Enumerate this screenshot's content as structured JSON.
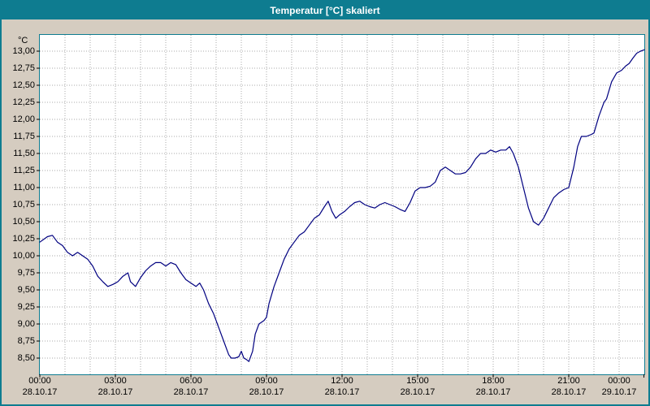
{
  "window": {
    "title": "Temperatur [°C] skaliert"
  },
  "colors": {
    "titlebar_bg": "#0e7c90",
    "frame": "#0e7c90",
    "window_bg": "#d5ccc0",
    "plot_bg": "#ffffff",
    "line": "#000080",
    "grid": "#a8a8a8",
    "tick": "#000000",
    "title_text": "#ffffff"
  },
  "chart_data": {
    "type": "line",
    "title": "Temperatur [°C] skaliert",
    "ylabel": "°C",
    "xlabel": "",
    "ylim": [
      8.5,
      13.0
    ],
    "y_tick_step": 0.25,
    "xlim_hours": [
      0,
      24
    ],
    "grid": "dotted; vertical every hour, horizontal every 0.25 °C",
    "legend": "none",
    "y_ticks": [
      {
        "value": 13.0,
        "label": "13,00"
      },
      {
        "value": 12.75,
        "label": "12,75"
      },
      {
        "value": 12.5,
        "label": "12,50"
      },
      {
        "value": 12.25,
        "label": "12,25"
      },
      {
        "value": 12.0,
        "label": "12,00"
      },
      {
        "value": 11.75,
        "label": "11,75"
      },
      {
        "value": 11.5,
        "label": "11,50"
      },
      {
        "value": 11.25,
        "label": "11,25"
      },
      {
        "value": 11.0,
        "label": "11,00"
      },
      {
        "value": 10.75,
        "label": "10,75"
      },
      {
        "value": 10.5,
        "label": "10,50"
      },
      {
        "value": 10.25,
        "label": "10,25"
      },
      {
        "value": 10.0,
        "label": "10,00"
      },
      {
        "value": 9.75,
        "label": "9,75"
      },
      {
        "value": 9.5,
        "label": "9,50"
      },
      {
        "value": 9.25,
        "label": "9,25"
      },
      {
        "value": 9.0,
        "label": "9,00"
      },
      {
        "value": 8.75,
        "label": "8,75"
      },
      {
        "value": 8.5,
        "label": "8,50"
      }
    ],
    "x_ticks": [
      {
        "hour": 0,
        "time": "00:00",
        "date": "28.10.17"
      },
      {
        "hour": 3,
        "time": "03:00",
        "date": "28.10.17"
      },
      {
        "hour": 6,
        "time": "06:00",
        "date": "28.10.17"
      },
      {
        "hour": 9,
        "time": "09:00",
        "date": "28.10.17"
      },
      {
        "hour": 12,
        "time": "12:00",
        "date": "28.10.17"
      },
      {
        "hour": 15,
        "time": "15:00",
        "date": "28.10.17"
      },
      {
        "hour": 18,
        "time": "18:00",
        "date": "28.10.17"
      },
      {
        "hour": 21,
        "time": "21:00",
        "date": "28.10.17"
      },
      {
        "hour": 24,
        "time": "00:00",
        "date": "29.10.17"
      }
    ],
    "series": [
      {
        "name": "Temperatur",
        "unit": "°C",
        "color": "#000080",
        "points": [
          [
            0,
            10.2
          ],
          [
            0.3,
            10.28
          ],
          [
            0.5,
            10.3
          ],
          [
            0.7,
            10.2
          ],
          [
            0.9,
            10.15
          ],
          [
            1.1,
            10.05
          ],
          [
            1.3,
            10.0
          ],
          [
            1.5,
            10.05
          ],
          [
            1.7,
            10.0
          ],
          [
            1.9,
            9.95
          ],
          [
            2.1,
            9.85
          ],
          [
            2.3,
            9.7
          ],
          [
            2.5,
            9.62
          ],
          [
            2.7,
            9.55
          ],
          [
            2.9,
            9.58
          ],
          [
            3.1,
            9.62
          ],
          [
            3.3,
            9.7
          ],
          [
            3.5,
            9.75
          ],
          [
            3.6,
            9.62
          ],
          [
            3.8,
            9.55
          ],
          [
            4.0,
            9.68
          ],
          [
            4.2,
            9.78
          ],
          [
            4.4,
            9.85
          ],
          [
            4.6,
            9.9
          ],
          [
            4.8,
            9.9
          ],
          [
            5.0,
            9.85
          ],
          [
            5.2,
            9.9
          ],
          [
            5.4,
            9.87
          ],
          [
            5.6,
            9.75
          ],
          [
            5.8,
            9.65
          ],
          [
            6.0,
            9.6
          ],
          [
            6.2,
            9.55
          ],
          [
            6.35,
            9.6
          ],
          [
            6.5,
            9.5
          ],
          [
            6.7,
            9.3
          ],
          [
            6.9,
            9.15
          ],
          [
            7.1,
            8.95
          ],
          [
            7.3,
            8.75
          ],
          [
            7.5,
            8.55
          ],
          [
            7.6,
            8.5
          ],
          [
            7.75,
            8.5
          ],
          [
            7.9,
            8.52
          ],
          [
            8.0,
            8.6
          ],
          [
            8.1,
            8.5
          ],
          [
            8.2,
            8.48
          ],
          [
            8.3,
            8.45
          ],
          [
            8.45,
            8.6
          ],
          [
            8.55,
            8.85
          ],
          [
            8.7,
            9.0
          ],
          [
            8.9,
            9.05
          ],
          [
            9.0,
            9.1
          ],
          [
            9.1,
            9.3
          ],
          [
            9.3,
            9.55
          ],
          [
            9.5,
            9.75
          ],
          [
            9.7,
            9.95
          ],
          [
            9.9,
            10.1
          ],
          [
            10.1,
            10.2
          ],
          [
            10.3,
            10.3
          ],
          [
            10.5,
            10.35
          ],
          [
            10.7,
            10.45
          ],
          [
            10.9,
            10.55
          ],
          [
            11.1,
            10.6
          ],
          [
            11.3,
            10.72
          ],
          [
            11.45,
            10.8
          ],
          [
            11.6,
            10.65
          ],
          [
            11.75,
            10.55
          ],
          [
            11.9,
            10.6
          ],
          [
            12.1,
            10.65
          ],
          [
            12.3,
            10.72
          ],
          [
            12.5,
            10.78
          ],
          [
            12.7,
            10.8
          ],
          [
            12.9,
            10.75
          ],
          [
            13.1,
            10.72
          ],
          [
            13.3,
            10.7
          ],
          [
            13.5,
            10.75
          ],
          [
            13.7,
            10.78
          ],
          [
            13.9,
            10.75
          ],
          [
            14.1,
            10.72
          ],
          [
            14.3,
            10.68
          ],
          [
            14.5,
            10.65
          ],
          [
            14.7,
            10.78
          ],
          [
            14.9,
            10.95
          ],
          [
            15.1,
            11.0
          ],
          [
            15.3,
            11.0
          ],
          [
            15.5,
            11.02
          ],
          [
            15.7,
            11.08
          ],
          [
            15.9,
            11.25
          ],
          [
            16.1,
            11.3
          ],
          [
            16.3,
            11.25
          ],
          [
            16.5,
            11.2
          ],
          [
            16.7,
            11.2
          ],
          [
            16.9,
            11.22
          ],
          [
            17.1,
            11.3
          ],
          [
            17.3,
            11.42
          ],
          [
            17.5,
            11.5
          ],
          [
            17.7,
            11.5
          ],
          [
            17.9,
            11.55
          ],
          [
            18.1,
            11.52
          ],
          [
            18.3,
            11.55
          ],
          [
            18.5,
            11.55
          ],
          [
            18.65,
            11.6
          ],
          [
            18.8,
            11.5
          ],
          [
            19.0,
            11.3
          ],
          [
            19.2,
            11.0
          ],
          [
            19.4,
            10.7
          ],
          [
            19.6,
            10.5
          ],
          [
            19.8,
            10.45
          ],
          [
            20.0,
            10.55
          ],
          [
            20.2,
            10.7
          ],
          [
            20.4,
            10.85
          ],
          [
            20.6,
            10.92
          ],
          [
            20.8,
            10.97
          ],
          [
            21.0,
            11.0
          ],
          [
            21.2,
            11.3
          ],
          [
            21.35,
            11.6
          ],
          [
            21.5,
            11.75
          ],
          [
            21.7,
            11.75
          ],
          [
            21.9,
            11.78
          ],
          [
            22.0,
            11.8
          ],
          [
            22.2,
            12.05
          ],
          [
            22.4,
            12.25
          ],
          [
            22.5,
            12.3
          ],
          [
            22.7,
            12.55
          ],
          [
            22.9,
            12.68
          ],
          [
            23.1,
            12.72
          ],
          [
            23.25,
            12.78
          ],
          [
            23.4,
            12.82
          ],
          [
            23.55,
            12.9
          ],
          [
            23.7,
            12.97
          ],
          [
            23.85,
            13.0
          ],
          [
            24.0,
            13.02
          ]
        ]
      }
    ]
  }
}
